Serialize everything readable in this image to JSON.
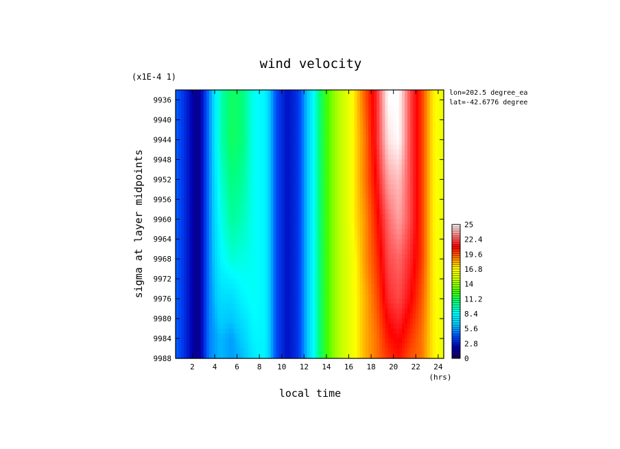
{
  "chart_data": {
    "type": "heatmap",
    "title": "wind velocity",
    "scale_note": "(x1E-4 1)",
    "xlabel": "local time",
    "xunit": "(hrs)",
    "ylabel": "sigma at layer midpoints",
    "info": [
      "lon=202.5 degree_ea",
      "lat=-42.6776 degree"
    ],
    "xlim": [
      0.5,
      24.5
    ],
    "ylim": [
      9934,
      9988
    ],
    "y_reversed": true,
    "xticks": [
      "2",
      "4",
      "6",
      "8",
      "10",
      "12",
      "14",
      "16",
      "18",
      "20",
      "22",
      "24"
    ],
    "yticks": [
      "9936",
      "9940",
      "9944",
      "9948",
      "9952",
      "9956",
      "9960",
      "9964",
      "9968",
      "9972",
      "9976",
      "9980",
      "9984",
      "9988"
    ],
    "colorbar": {
      "min": 0,
      "max": 25,
      "ticks": [
        "25",
        "22.4",
        "19.6",
        "16.8",
        "14",
        "11.2",
        "8.4",
        "5.6",
        "2.8",
        "0"
      ],
      "colors": [
        "#1a0050",
        "#0000b4",
        "#0050ff",
        "#00c8ff",
        "#00ffff",
        "#00ff80",
        "#40ff00",
        "#c0ff00",
        "#ffff00",
        "#ff8000",
        "#ff0000",
        "#ff8080",
        "#ffffff"
      ]
    },
    "x": [
      0.5,
      1.5,
      2.5,
      3.5,
      4.5,
      5.5,
      6.5,
      7.5,
      8.5,
      9.5,
      10.5,
      11.5,
      12.5,
      13.5,
      14.5,
      15.5,
      16.5,
      17.5,
      18.5,
      19.5,
      20.5,
      21.5,
      22.5,
      23.5,
      24.5
    ],
    "y": [
      9936,
      9944,
      9952,
      9960,
      9968,
      9976,
      9984,
      9988
    ],
    "z": [
      [
        4.5,
        3.0,
        1.0,
        5.0,
        9.5,
        11.0,
        10.5,
        8.5,
        8.0,
        4.0,
        2.5,
        3.5,
        7.0,
        11.0,
        13.5,
        15.0,
        17.0,
        19.5,
        21.5,
        25.0,
        25.0,
        22.0,
        20.0,
        17.0,
        16.0
      ],
      [
        4.5,
        3.0,
        1.0,
        5.0,
        9.5,
        11.0,
        10.5,
        8.5,
        8.0,
        4.0,
        2.5,
        3.5,
        7.0,
        11.0,
        13.5,
        15.0,
        17.0,
        19.0,
        21.5,
        24.5,
        25.0,
        22.0,
        20.0,
        17.0,
        16.0
      ],
      [
        4.5,
        3.0,
        1.0,
        5.0,
        9.0,
        10.5,
        10.0,
        8.5,
        8.0,
        4.0,
        2.5,
        3.5,
        7.0,
        11.0,
        13.5,
        15.0,
        17.0,
        19.0,
        21.0,
        23.5,
        24.0,
        22.0,
        20.0,
        17.0,
        16.0
      ],
      [
        4.5,
        3.0,
        1.0,
        5.0,
        8.5,
        10.0,
        9.5,
        8.5,
        8.0,
        4.0,
        2.5,
        3.5,
        7.0,
        11.0,
        13.5,
        15.0,
        17.0,
        18.5,
        20.5,
        22.5,
        23.5,
        22.0,
        20.0,
        17.0,
        16.0
      ],
      [
        4.5,
        3.0,
        1.0,
        5.0,
        8.0,
        9.0,
        8.8,
        8.5,
        8.0,
        4.0,
        2.5,
        3.5,
        7.0,
        11.0,
        13.5,
        15.0,
        16.5,
        18.5,
        20.0,
        22.0,
        22.5,
        21.5,
        20.0,
        17.0,
        16.0
      ],
      [
        4.5,
        3.0,
        1.0,
        5.0,
        7.0,
        7.0,
        8.0,
        8.5,
        8.0,
        4.0,
        2.5,
        3.5,
        7.0,
        11.0,
        13.5,
        15.0,
        16.5,
        18.0,
        19.5,
        21.5,
        22.0,
        21.0,
        19.5,
        17.0,
        16.0
      ],
      [
        4.5,
        3.0,
        1.0,
        5.0,
        6.0,
        5.5,
        6.5,
        8.0,
        8.0,
        4.0,
        2.5,
        3.5,
        7.0,
        11.0,
        13.5,
        15.0,
        16.5,
        18.0,
        19.0,
        20.5,
        21.0,
        20.0,
        19.0,
        17.0,
        16.0
      ],
      [
        4.5,
        3.0,
        1.0,
        5.0,
        6.0,
        5.5,
        6.0,
        7.5,
        8.0,
        4.0,
        2.5,
        3.5,
        7.0,
        11.0,
        13.5,
        15.0,
        16.5,
        18.0,
        19.0,
        20.0,
        20.5,
        19.5,
        19.0,
        17.0,
        16.0
      ]
    ]
  }
}
